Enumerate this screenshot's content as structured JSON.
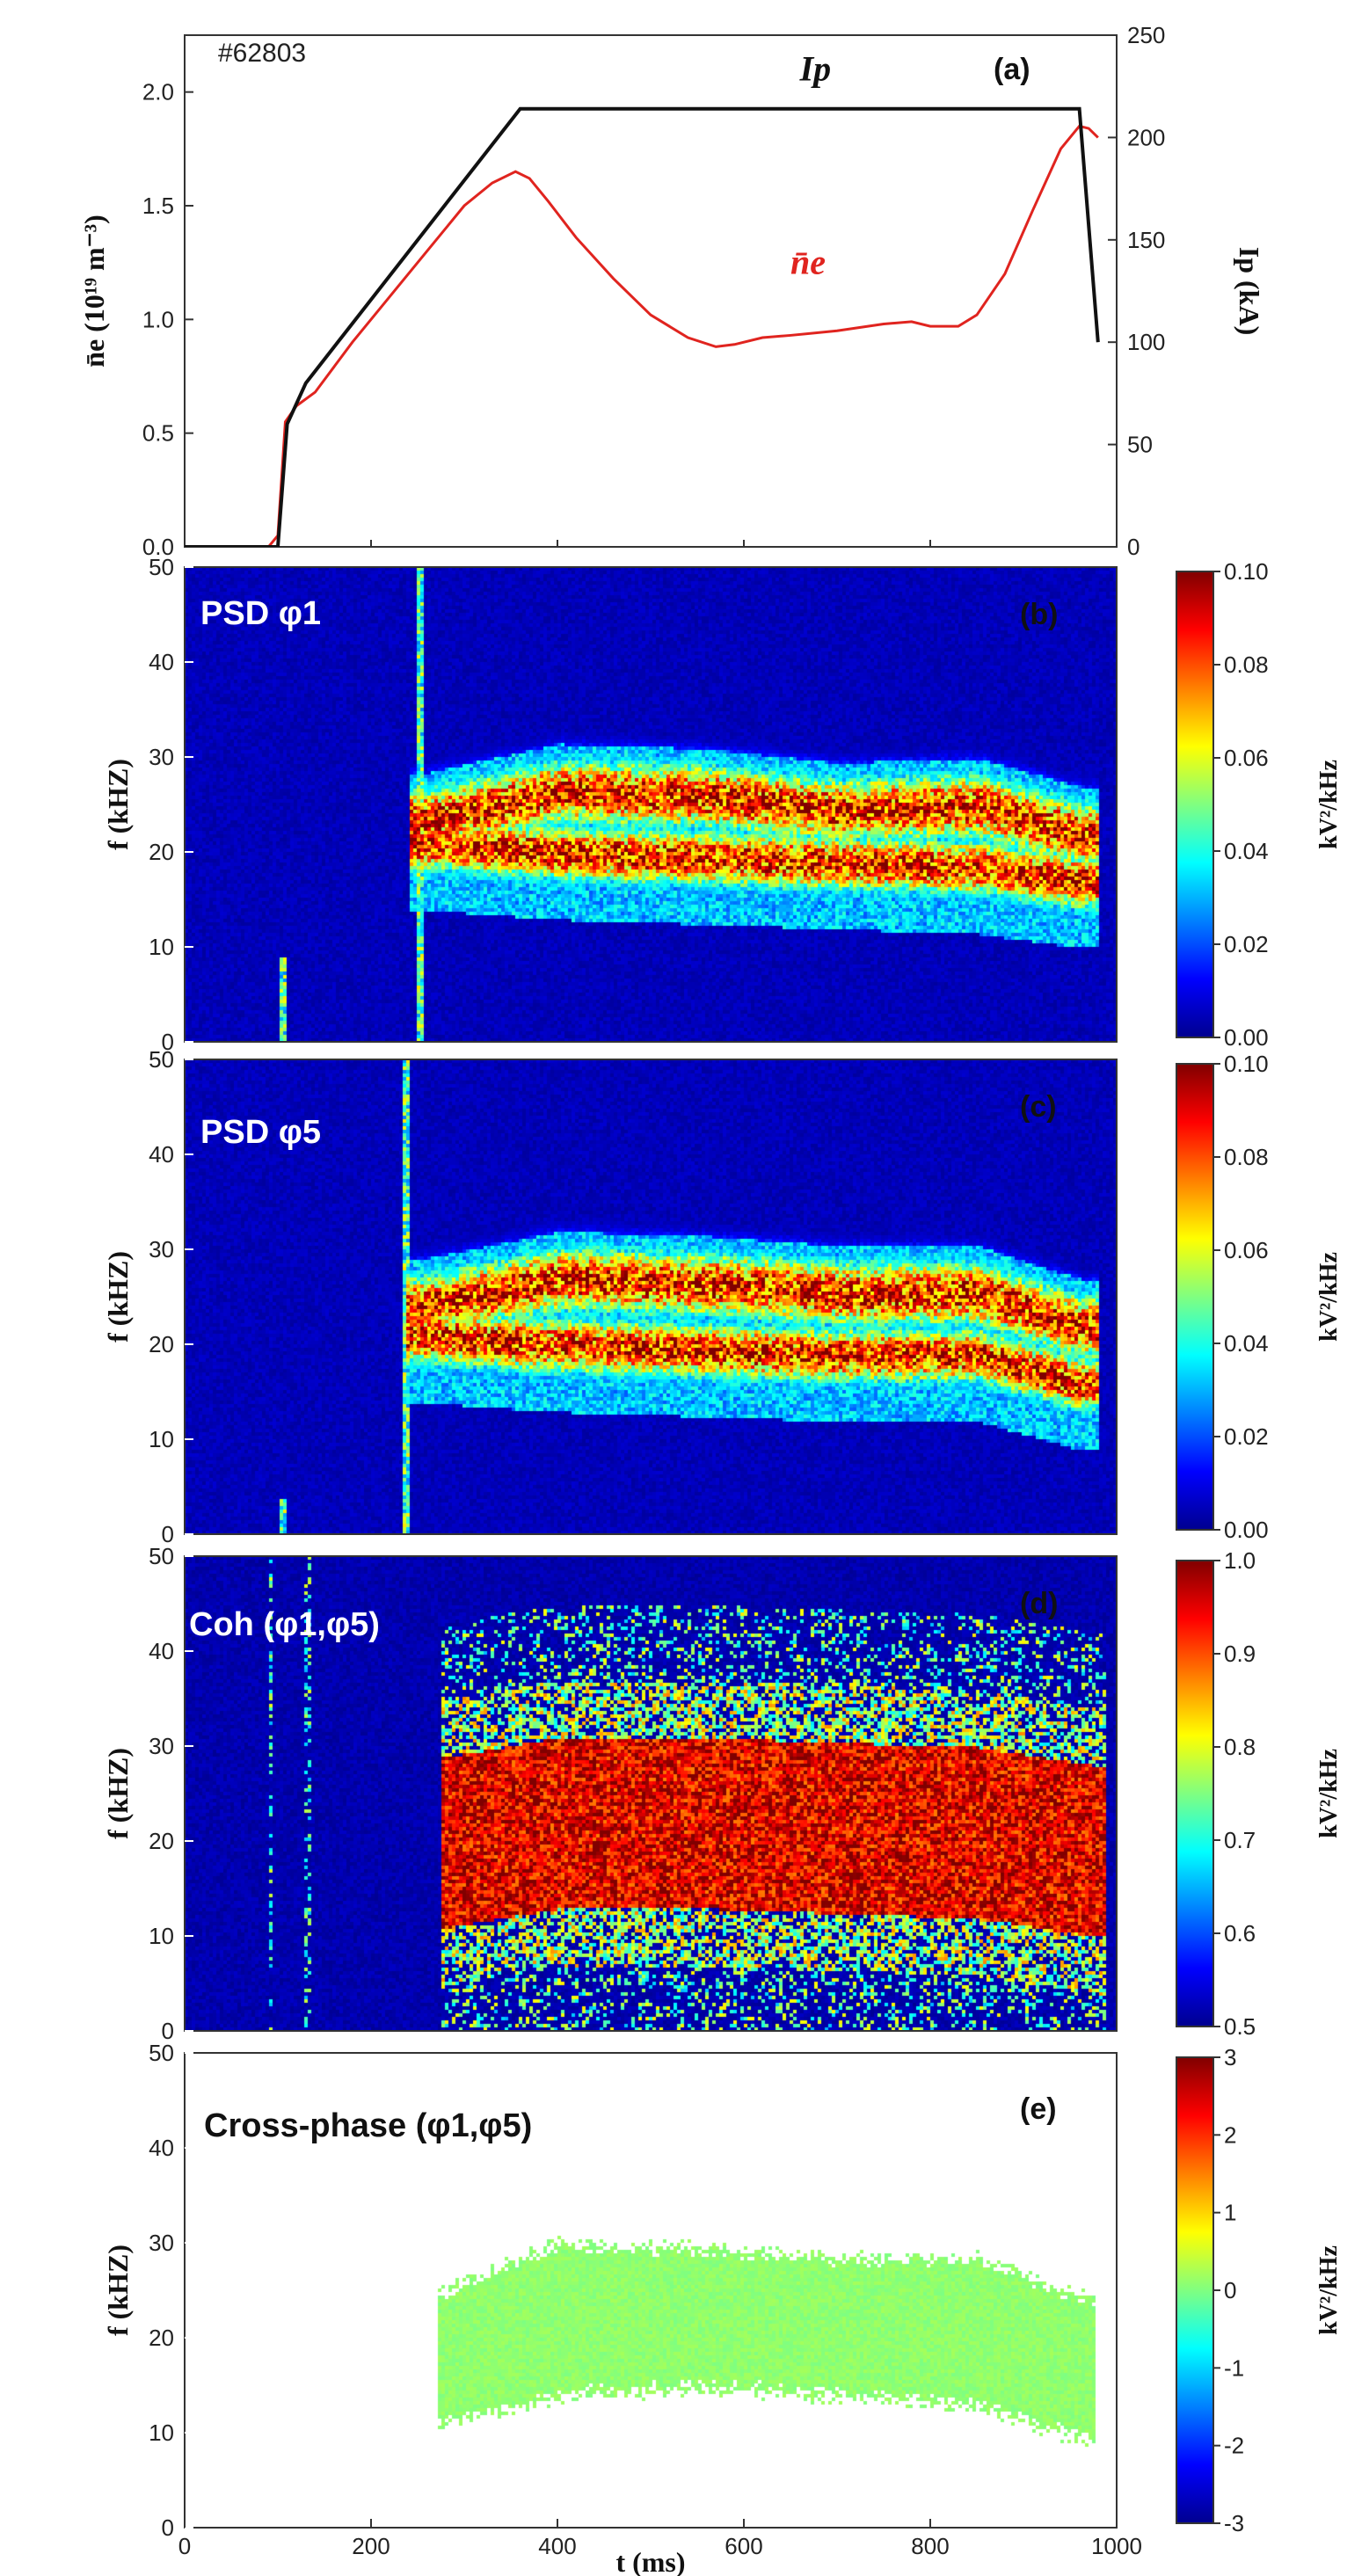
{
  "chart_data": [
    {
      "id": "a",
      "type": "line",
      "panel_label": "(a)",
      "shot_label": "#62803",
      "xlim": [
        0,
        1000
      ],
      "ylim": [
        0.0,
        2.25
      ],
      "y2lim": [
        0,
        250
      ],
      "yticks": [
        "0.0",
        "0.5",
        "1.0",
        "1.5",
        "2.0"
      ],
      "y2ticks": [
        "0",
        "50",
        "100",
        "150",
        "200",
        "250"
      ],
      "ylabel": "n̄e (10¹⁹ m⁻³)",
      "y2label": "Ip (kA)",
      "series": [
        {
          "name": "n̄e",
          "axis": "left",
          "color": "#e0241f",
          "x": [
            0,
            90,
            100,
            108,
            120,
            140,
            180,
            220,
            260,
            300,
            330,
            355,
            370,
            390,
            420,
            460,
            500,
            540,
            570,
            590,
            620,
            650,
            700,
            750,
            780,
            800,
            830,
            850,
            880,
            910,
            940,
            960,
            970,
            980
          ],
          "y": [
            0.0,
            0.0,
            0.05,
            0.55,
            0.62,
            0.68,
            0.9,
            1.1,
            1.3,
            1.5,
            1.6,
            1.65,
            1.62,
            1.52,
            1.36,
            1.18,
            1.02,
            0.92,
            0.88,
            0.89,
            0.92,
            0.93,
            0.95,
            0.98,
            0.99,
            0.97,
            0.97,
            1.02,
            1.2,
            1.48,
            1.75,
            1.85,
            1.84,
            1.8
          ]
        },
        {
          "name": "Ip",
          "axis": "right",
          "color": "#111111",
          "x": [
            0,
            95,
            100,
            110,
            130,
            360,
            960,
            980
          ],
          "y": [
            0,
            0,
            0,
            60,
            80,
            214,
            214,
            100
          ]
        }
      ],
      "annotations": [
        {
          "text": "Ip",
          "x": 660,
          "y": 2.05,
          "color": "#111111"
        },
        {
          "text": "n̄e",
          "x": 650,
          "y": 1.2,
          "color": "#e0241f"
        }
      ]
    },
    {
      "id": "b",
      "type": "heatmap",
      "panel_label": "(b)",
      "title": "PSD φ1",
      "xlim": [
        0,
        1000
      ],
      "ylim": [
        0,
        50
      ],
      "yticks": [
        "0",
        "10",
        "20",
        "30",
        "40",
        "50"
      ],
      "ylabel": "f (kHZ)",
      "colorbar": {
        "min": 0.0,
        "max": 0.1,
        "ticks": [
          "0.00",
          "0.02",
          "0.04",
          "0.06",
          "0.08",
          "0.10"
        ],
        "label": "kV²/kHz"
      },
      "bands": {
        "t_start": 240,
        "t_end": 980,
        "upper_center": [
          [
            260,
            23.5
          ],
          [
            400,
            26.5
          ],
          [
            560,
            26
          ],
          [
            700,
            24.5
          ],
          [
            850,
            25
          ],
          [
            960,
            22
          ]
        ],
        "lower_center": [
          [
            260,
            21
          ],
          [
            400,
            20
          ],
          [
            560,
            19.5
          ],
          [
            700,
            19
          ],
          [
            850,
            18.5
          ],
          [
            960,
            17
          ]
        ],
        "spikes": [
          [
            105,
            0,
            9
          ],
          [
            250,
            0,
            50
          ]
        ]
      }
    },
    {
      "id": "c",
      "type": "heatmap",
      "panel_label": "(c)",
      "title": "PSD φ5",
      "xlim": [
        0,
        1000
      ],
      "ylim": [
        0,
        50
      ],
      "yticks": [
        "0",
        "10",
        "20",
        "30",
        "40",
        "50"
      ],
      "ylabel": "f (kHZ)",
      "colorbar": {
        "min": 0.0,
        "max": 0.1,
        "ticks": [
          "0.00",
          "0.02",
          "0.04",
          "0.06",
          "0.08",
          "0.10"
        ],
        "label": "kV²/kHz"
      },
      "bands": {
        "t_start": 235,
        "t_end": 980,
        "upper_center": [
          [
            250,
            24
          ],
          [
            400,
            27
          ],
          [
            560,
            26.5
          ],
          [
            700,
            25.5
          ],
          [
            850,
            25.5
          ],
          [
            960,
            22
          ]
        ],
        "lower_center": [
          [
            250,
            21
          ],
          [
            400,
            20
          ],
          [
            560,
            19.5
          ],
          [
            700,
            19
          ],
          [
            850,
            19
          ],
          [
            960,
            16
          ]
        ],
        "spikes": [
          [
            105,
            0,
            4
          ],
          [
            235,
            0,
            50
          ]
        ]
      }
    },
    {
      "id": "d",
      "type": "heatmap",
      "panel_label": "(d)",
      "title": "Coh (φ1,φ5)",
      "xlim": [
        0,
        1000
      ],
      "ylim": [
        0,
        50
      ],
      "yticks": [
        "0",
        "10",
        "20",
        "30",
        "40",
        "50"
      ],
      "ylabel": "f (kHZ)",
      "colorbar": {
        "min": 0.5,
        "max": 1.0,
        "ticks": [
          "0.5",
          "0.6",
          "0.7",
          "0.8",
          "0.9",
          "1.0"
        ],
        "label": "kV²/kHz"
      },
      "bands": {
        "t_start": 275,
        "t_end": 985,
        "center": [
          [
            280,
            20
          ],
          [
            400,
            22
          ],
          [
            560,
            22
          ],
          [
            700,
            21.5
          ],
          [
            850,
            21
          ],
          [
            980,
            19
          ]
        ],
        "half_width": 9
      }
    },
    {
      "id": "e",
      "type": "heatmap",
      "panel_label": "(e)",
      "title": "Cross-phase (φ1,φ5)",
      "xlim": [
        0,
        1000
      ],
      "ylim": [
        0,
        50
      ],
      "xticks": [
        "0",
        "200",
        "400",
        "600",
        "800",
        "1000"
      ],
      "yticks": [
        "0",
        "10",
        "20",
        "30",
        "40",
        "50"
      ],
      "ylabel": "f (kHZ)",
      "xlabel": "t (ms)",
      "colorbar": {
        "min": -3,
        "max": 3,
        "ticks": [
          "-3",
          "-2",
          "-1",
          "0",
          "1",
          "2",
          "3"
        ],
        "label": "kV²/kHz"
      },
      "bands": {
        "t_start": 270,
        "t_end": 975,
        "lower": [
          [
            270,
            11
          ],
          [
            400,
            14
          ],
          [
            560,
            15
          ],
          [
            700,
            14
          ],
          [
            850,
            13
          ],
          [
            975,
            9
          ]
        ],
        "upper": [
          [
            270,
            25
          ],
          [
            400,
            30
          ],
          [
            560,
            29.5
          ],
          [
            700,
            28.5
          ],
          [
            850,
            28.5
          ],
          [
            975,
            24
          ]
        ],
        "value": 0.1
      }
    }
  ]
}
